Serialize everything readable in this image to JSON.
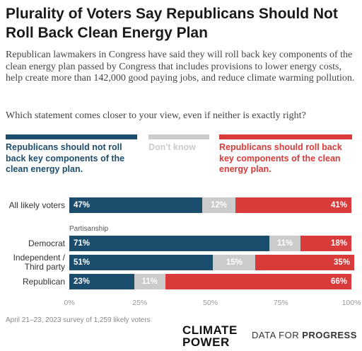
{
  "chart_data": {
    "type": "stacked-bar-horizontal",
    "title": "Plurality of Voters Say Republicans Should Not Roll Back Clean Energy Plan",
    "subtitle": "Republican lawmakers in Congress have said they will roll back key components of the clean energy plan passed by Congress that includes provisions to lower energy costs, help create more than 142,000 good paying jobs, and reduce climate warming pollution.",
    "question": "Which statement comes closer to your view, even if neither is exactly right?",
    "categories": [
      "All likely voters",
      "Democrat",
      "Independent / Third party",
      "Republican"
    ],
    "group_label": "Partisanship",
    "series": [
      {
        "name": "Republicans should not roll back key components of the clean energy plan.",
        "color": "#1d4d6d",
        "values": [
          47,
          71,
          51,
          23
        ],
        "value_labels": [
          "47%",
          "71%",
          "51%",
          "23%"
        ]
      },
      {
        "name": "Don't know",
        "color": "#cbcbcb",
        "values": [
          12,
          11,
          15,
          11
        ],
        "value_labels": [
          "12%",
          "11%",
          "15%",
          "11%"
        ]
      },
      {
        "name": "Republicans should roll back key components of the clean energy plan.",
        "color": "#d93a3a",
        "values": [
          41,
          18,
          35,
          66
        ],
        "value_labels": [
          "41%",
          "18%",
          "35%",
          "66%"
        ]
      }
    ],
    "xlim": [
      0,
      100
    ],
    "xticks": [
      {
        "value": 0,
        "label": "0%"
      },
      {
        "value": 25,
        "label": "25%"
      },
      {
        "value": 50,
        "label": "50%"
      },
      {
        "value": 75,
        "label": "75%"
      },
      {
        "value": 100,
        "label": "100%"
      }
    ],
    "source": "April 21–23, 2023 survey of 1,259 likely voters",
    "logos": {
      "left": "CLIMATE POWER",
      "right_light": "DATA FOR",
      "right_bold": "PROGRESS"
    }
  }
}
